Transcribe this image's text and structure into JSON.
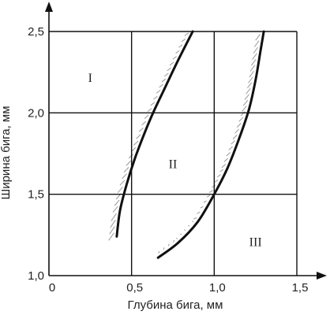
{
  "chart_data": {
    "type": "line",
    "title": "",
    "xlabel": "Глубина бига, мм",
    "ylabel": "Ширина бига, мм",
    "xlim": [
      0,
      1.5
    ],
    "ylim": [
      1.0,
      2.5
    ],
    "x_ticks": [
      {
        "value": 0,
        "label": "0"
      },
      {
        "value": 0.5,
        "label": "0,5"
      },
      {
        "value": 1.0,
        "label": "1,0"
      },
      {
        "value": 1.5,
        "label": "1,5"
      }
    ],
    "y_ticks": [
      {
        "value": 1.0,
        "label": "1,0"
      },
      {
        "value": 1.5,
        "label": "1,5"
      },
      {
        "value": 2.0,
        "label": "2,0"
      },
      {
        "value": 2.5,
        "label": "2,5"
      }
    ],
    "grid": true,
    "series": [
      {
        "points": [
          [
            0.41,
            1.24
          ],
          [
            0.43,
            1.4
          ],
          [
            0.47,
            1.56
          ],
          [
            0.52,
            1.72
          ],
          [
            0.58,
            1.88
          ],
          [
            0.63,
            2.0
          ],
          [
            0.7,
            2.15
          ],
          [
            0.78,
            2.32
          ],
          [
            0.87,
            2.5
          ]
        ]
      },
      {
        "points": [
          [
            0.66,
            1.11
          ],
          [
            0.78,
            1.2
          ],
          [
            0.9,
            1.33
          ],
          [
            1.0,
            1.5
          ],
          [
            1.08,
            1.66
          ],
          [
            1.15,
            1.84
          ],
          [
            1.21,
            2.02
          ],
          [
            1.25,
            2.2
          ],
          [
            1.28,
            2.38
          ],
          [
            1.3,
            2.5
          ]
        ]
      }
    ],
    "regions": [
      {
        "label": "I",
        "x": 0.25,
        "y": 2.22
      },
      {
        "label": "II",
        "x": 0.75,
        "y": 1.69
      },
      {
        "label": "III",
        "x": 1.25,
        "y": 1.21
      }
    ],
    "hatch_color": "#9a9a9a",
    "line_color": "#111111"
  }
}
